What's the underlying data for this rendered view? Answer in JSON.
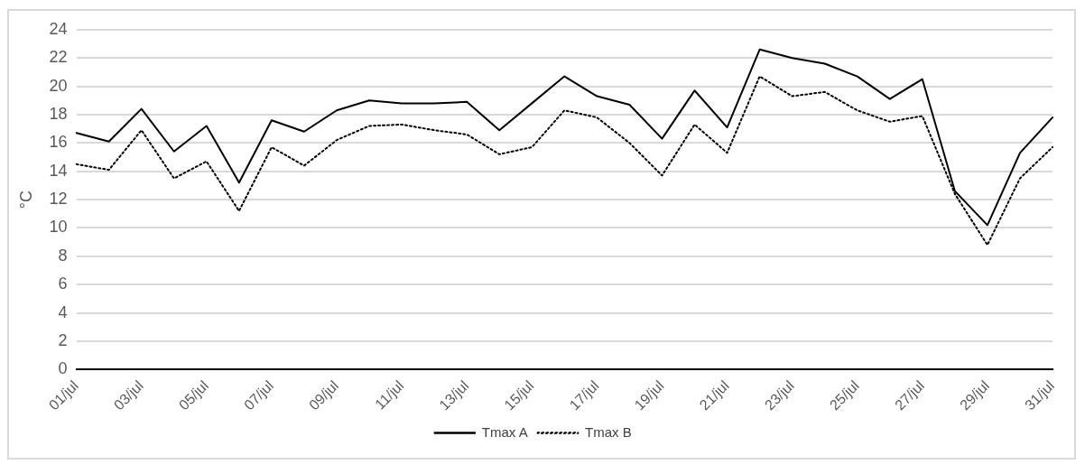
{
  "chart_data": {
    "type": "line",
    "ylabel": "°C",
    "categories": [
      "01/jul",
      null,
      "03/jul",
      null,
      "05/jul",
      null,
      "07/jul",
      null,
      "09/jul",
      null,
      "11/jul",
      null,
      "13/jul",
      null,
      "15/jul",
      null,
      "17/jul",
      null,
      "19/jul",
      null,
      "21/jul",
      null,
      "23/jul",
      null,
      "25/jul",
      null,
      "27/jul",
      null,
      "29/jul",
      null,
      "31/jul"
    ],
    "series": [
      {
        "name": "Tmax A",
        "color": "#000000",
        "line_style": "solid",
        "values": [
          16.7,
          16.1,
          18.4,
          15.4,
          17.2,
          13.2,
          17.6,
          16.8,
          18.3,
          19.0,
          18.8,
          18.8,
          18.9,
          16.9,
          18.8,
          20.7,
          19.3,
          18.7,
          16.3,
          19.7,
          17.1,
          22.6,
          22.0,
          21.6,
          20.7,
          19.1,
          20.5,
          12.6,
          10.2,
          15.3,
          17.8
        ]
      },
      {
        "name": "Tmax B",
        "color": "#000000",
        "line_style": "dotted",
        "values": [
          14.5,
          14.1,
          16.9,
          13.5,
          14.7,
          11.2,
          15.7,
          14.4,
          16.2,
          17.2,
          17.3,
          16.9,
          16.6,
          15.2,
          15.7,
          18.3,
          17.8,
          16.0,
          13.7,
          17.3,
          15.3,
          20.7,
          19.3,
          19.6,
          18.3,
          17.5,
          17.9,
          12.4,
          8.8,
          13.5,
          15.7
        ]
      }
    ],
    "ylim": [
      0,
      24
    ],
    "yticks": [
      0,
      2,
      4,
      6,
      8,
      10,
      12,
      14,
      16,
      18,
      20,
      22,
      24
    ],
    "grid": "y",
    "legend": "bottom",
    "marker": "none"
  }
}
